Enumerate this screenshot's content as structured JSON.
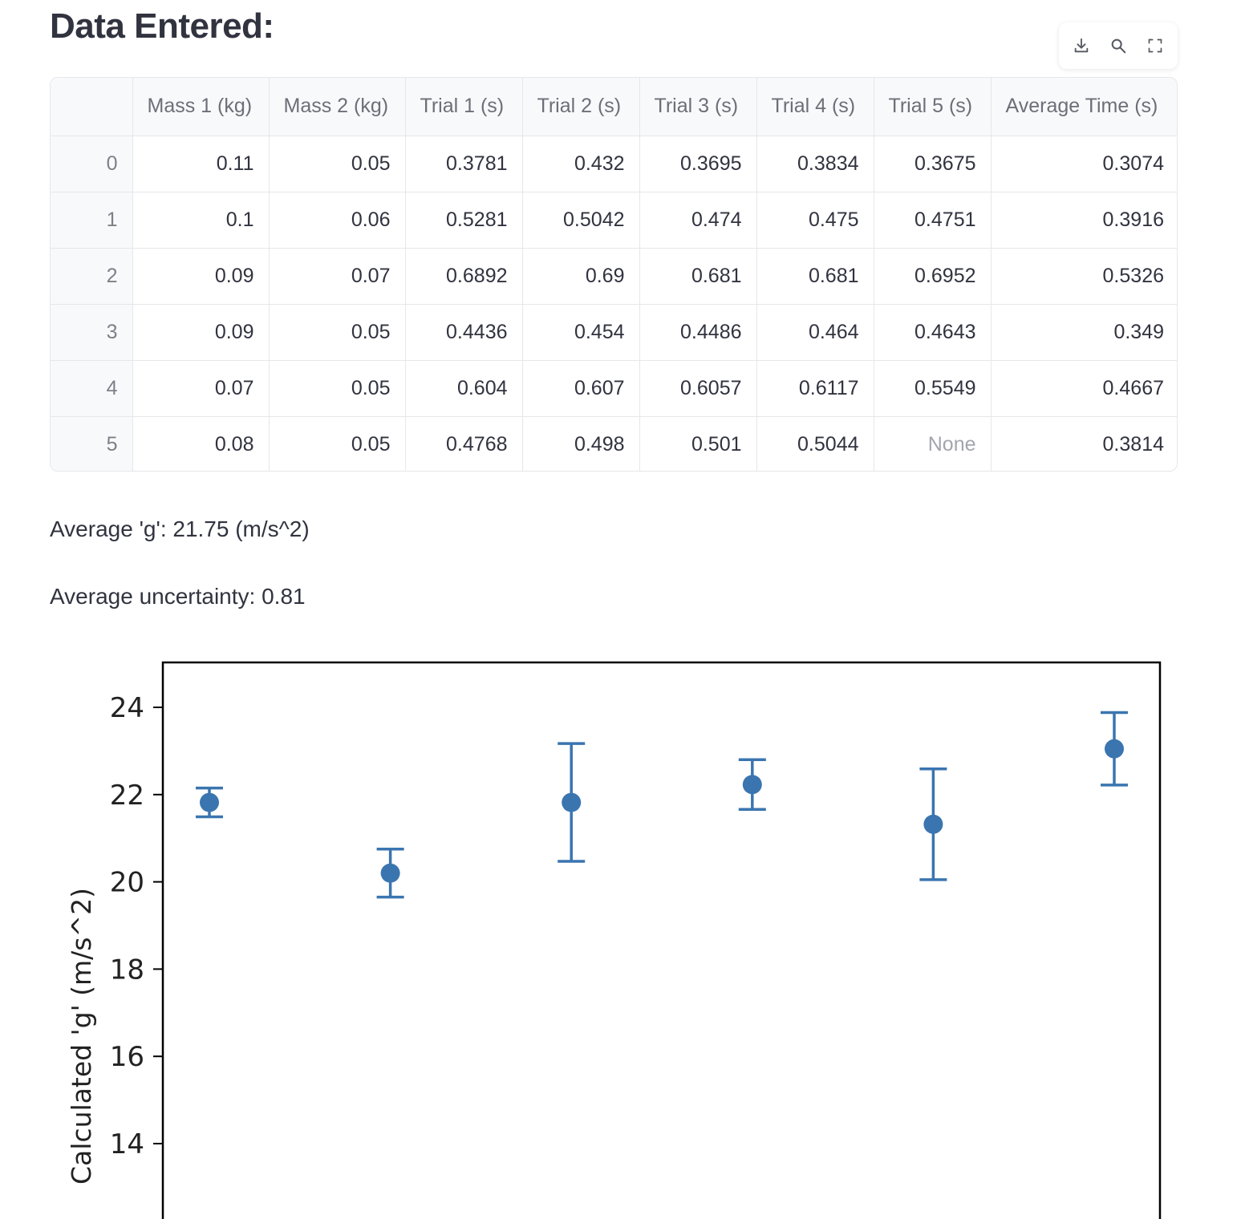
{
  "page": {
    "title": "Data Entered:"
  },
  "toolbar": {
    "icons": [
      "download-icon",
      "search-icon",
      "fullscreen-icon"
    ]
  },
  "table": {
    "columns": [
      "",
      "Mass 1 (kg)",
      "Mass 2 (kg)",
      "Trial 1 (s)",
      "Trial 2 (s)",
      "Trial 3 (s)",
      "Trial 4 (s)",
      "Trial 5 (s)",
      "Average Time (s)"
    ],
    "rows": [
      [
        "0",
        "0.11",
        "0.05",
        "0.3781",
        "0.432",
        "0.3695",
        "0.3834",
        "0.3675",
        "0.3074"
      ],
      [
        "1",
        "0.1",
        "0.06",
        "0.5281",
        "0.5042",
        "0.474",
        "0.475",
        "0.4751",
        "0.3916"
      ],
      [
        "2",
        "0.09",
        "0.07",
        "0.6892",
        "0.69",
        "0.681",
        "0.681",
        "0.6952",
        "0.5326"
      ],
      [
        "3",
        "0.09",
        "0.05",
        "0.4436",
        "0.454",
        "0.4486",
        "0.464",
        "0.4643",
        "0.349"
      ],
      [
        "4",
        "0.07",
        "0.05",
        "0.604",
        "0.607",
        "0.6057",
        "0.6117",
        "0.5549",
        "0.4667"
      ],
      [
        "5",
        "0.08",
        "0.05",
        "0.4768",
        "0.498",
        "0.501",
        "0.5044",
        "None",
        "0.3814"
      ]
    ]
  },
  "stats": {
    "average_g": "Average 'g': 21.75 (m/s^2)",
    "average_uncertainty": "Average uncertainty: 0.81"
  },
  "chart_data": {
    "type": "scatter",
    "ylabel": "Calculated 'g' (m/s^2)",
    "xlabel": "",
    "yticks": [
      "14",
      "16",
      "18",
      "20",
      "22",
      "24"
    ],
    "ylim": [
      12.9,
      25.0
    ],
    "x": [
      0,
      1,
      2,
      3,
      4,
      5
    ],
    "y": [
      21.82,
      20.2,
      21.82,
      22.23,
      21.32,
      23.05
    ],
    "yerr": [
      0.33,
      0.55,
      1.35,
      0.57,
      1.27,
      0.83
    ],
    "grid": false,
    "color": "#3a75b0"
  }
}
